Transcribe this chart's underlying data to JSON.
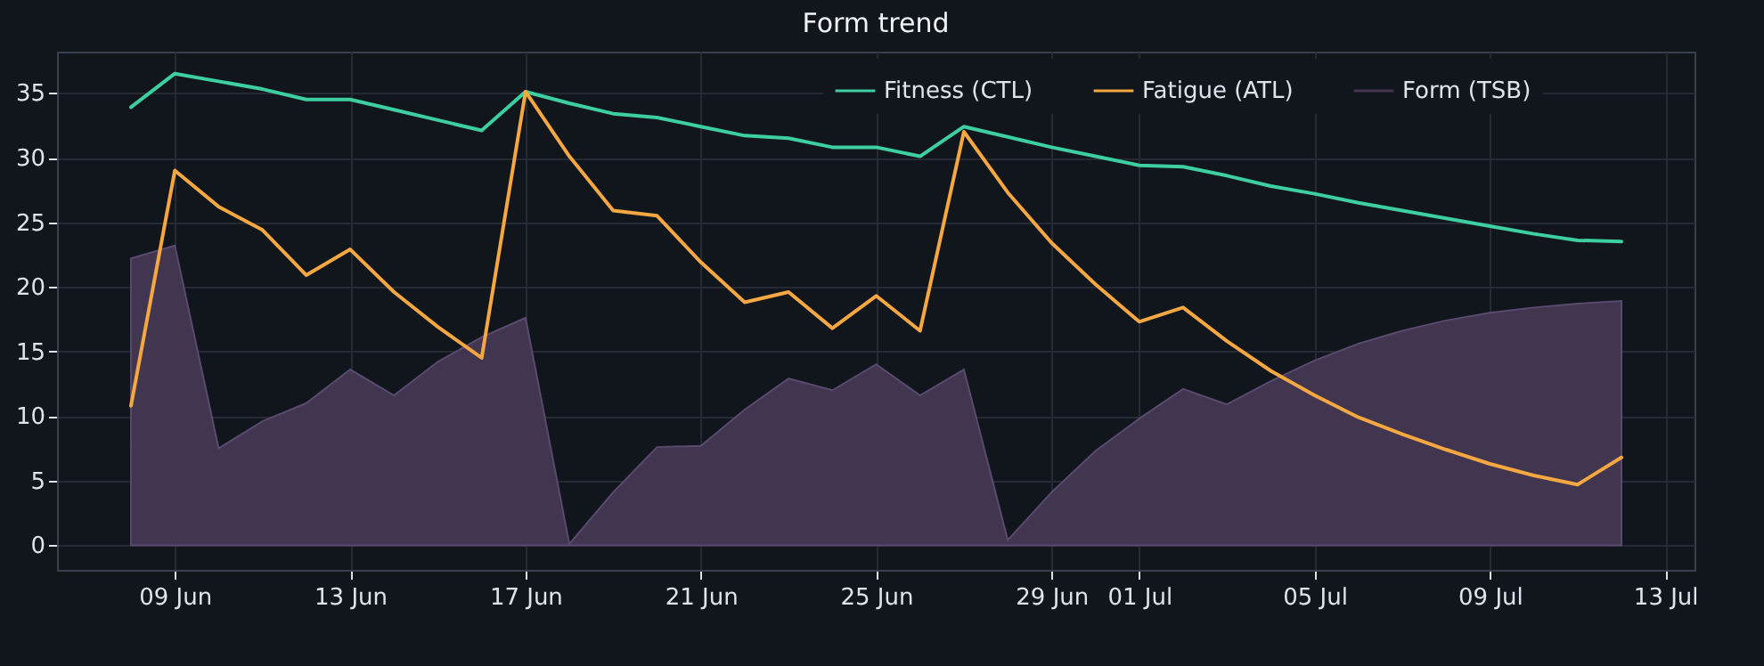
{
  "chart_data": {
    "type": "line",
    "title": "Form trend",
    "x": [
      "--06-08",
      "--06-09",
      "--06-10",
      "--06-11",
      "--06-12",
      "--06-13",
      "--06-14",
      "--06-15",
      "--06-16",
      "--06-17",
      "--06-18",
      "--06-19",
      "--06-20",
      "--06-21",
      "--06-22",
      "--06-23",
      "--06-24",
      "--06-25",
      "--06-26",
      "--06-27",
      "--06-28",
      "--06-29",
      "--06-30",
      "--07-01",
      "--07-02",
      "--07-03",
      "--07-04",
      "--07-05",
      "--07-06",
      "--07-07",
      "--07-08",
      "--07-09",
      "--07-10",
      "--07-11",
      "--07-12"
    ],
    "series": [
      {
        "name": "Fitness (CTL)",
        "color": "#3ecfa0",
        "values": [
          33.9,
          36.5,
          35.9,
          35.3,
          34.5,
          34.5,
          33.7,
          32.9,
          32.1,
          35.1,
          34.2,
          33.4,
          33.1,
          32.4,
          31.7,
          31.5,
          30.8,
          30.8,
          30.1,
          32.4,
          31.6,
          30.8,
          30.1,
          29.4,
          29.3,
          28.6,
          27.8,
          27.2,
          26.5,
          25.9,
          25.3,
          24.7,
          24.1,
          23.6,
          23.5
        ]
      },
      {
        "name": "Fatigue (ATL)",
        "color": "#f5a742",
        "values": [
          10.8,
          29.0,
          26.2,
          24.4,
          20.9,
          22.9,
          19.6,
          16.9,
          14.5,
          35.1,
          30.1,
          25.9,
          25.5,
          21.9,
          18.8,
          19.6,
          16.8,
          19.3,
          16.6,
          32.0,
          27.3,
          23.4,
          20.2,
          17.3,
          18.4,
          15.8,
          13.5,
          11.6,
          9.9,
          8.6,
          7.4,
          6.3,
          5.4,
          4.7,
          6.8
        ]
      },
      {
        "name": "Form (TSB)",
        "type": "area",
        "color": "#413550",
        "values": [
          22.2,
          23.2,
          7.5,
          9.6,
          11.0,
          13.6,
          11.6,
          14.2,
          16.1,
          17.6,
          0.1,
          4.1,
          7.6,
          7.7,
          10.5,
          12.9,
          12.0,
          14.0,
          11.6,
          13.6,
          0.4,
          4.1,
          7.3,
          9.8,
          12.1,
          10.9,
          12.7,
          14.3,
          15.6,
          16.6,
          17.4,
          18.0,
          18.4,
          18.7,
          18.9
        ]
      }
    ],
    "xlim": [
      "--06-06T07:30",
      "--07-13T16:00"
    ],
    "xticks": [
      {
        "value": "--06-09",
        "label": "09 Jun"
      },
      {
        "value": "--06-13",
        "label": "13 Jun"
      },
      {
        "value": "--06-17",
        "label": "17 Jun"
      },
      {
        "value": "--06-21",
        "label": "21 Jun"
      },
      {
        "value": "--06-25",
        "label": "25 Jun"
      },
      {
        "value": "--06-29",
        "label": "29 Jun"
      },
      {
        "value": "--07-01",
        "label": "01 Jul"
      },
      {
        "value": "--07-05",
        "label": "05 Jul"
      },
      {
        "value": "--07-09",
        "label": "09 Jul"
      },
      {
        "value": "--07-13",
        "label": "13 Jul"
      }
    ],
    "ylim": [
      -1.9,
      38.2
    ],
    "yticks": [
      0,
      5,
      10,
      15,
      20,
      25,
      30,
      35
    ],
    "grid": true,
    "legend": "top right"
  }
}
